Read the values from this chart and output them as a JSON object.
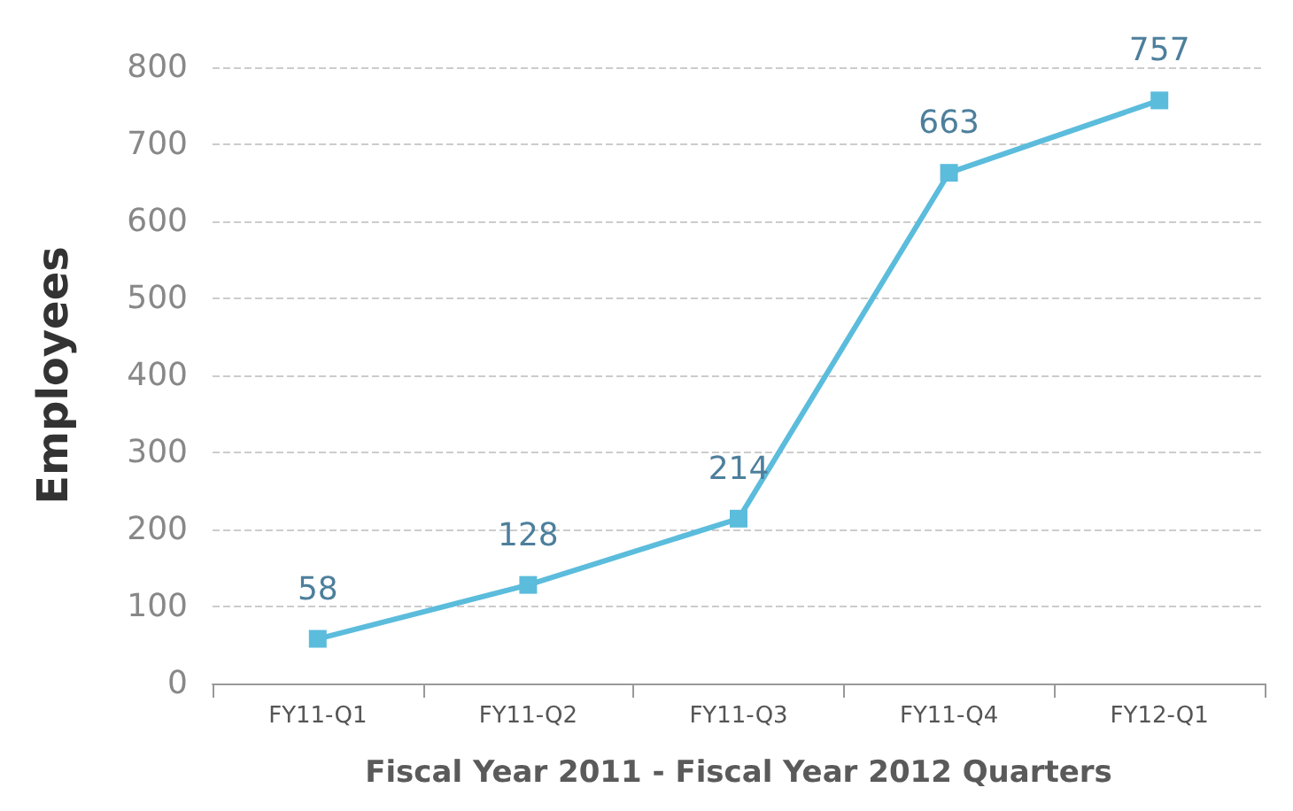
{
  "chart_data": {
    "type": "line",
    "xlabel": "Fiscal Year 2011 - Fiscal Year 2012 Quarters",
    "ylabel": "Employees",
    "categories": [
      "FY11-Q1",
      "FY11-Q2",
      "FY11-Q3",
      "FY11-Q4",
      "FY12-Q1"
    ],
    "series": [
      {
        "color": "#5bbcdc",
        "values": [
          58,
          128,
          214,
          663,
          757
        ]
      }
    ],
    "ylim": [
      0,
      800
    ],
    "yticks": [
      0,
      100,
      200,
      300,
      400,
      500,
      600,
      700,
      800
    ],
    "grid": "y",
    "marker": "square",
    "line_style": "solid",
    "data_labels": true
  }
}
